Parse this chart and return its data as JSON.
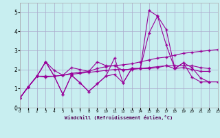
{
  "background_color": "#c8eef0",
  "grid_color": "#aaaacc",
  "line_color": "#990099",
  "xlabel": "Windchill (Refroidissement éolien,°C)",
  "xlim": [
    0,
    23
  ],
  "ylim": [
    0,
    5.5
  ],
  "yticks": [
    0,
    1,
    2,
    3,
    4,
    5
  ],
  "xticks": [
    0,
    1,
    2,
    3,
    4,
    5,
    6,
    7,
    8,
    9,
    10,
    11,
    12,
    13,
    14,
    15,
    16,
    17,
    18,
    19,
    20,
    21,
    22,
    23
  ],
  "series": [
    {
      "x": [
        0,
        1,
        2,
        3,
        4,
        5,
        6,
        7,
        8,
        9,
        10,
        11,
        12,
        13,
        14,
        15,
        16,
        17,
        18,
        19,
        20,
        21,
        22
      ],
      "y": [
        0.5,
        1.1,
        1.65,
        2.4,
        1.65,
        0.7,
        1.7,
        1.3,
        0.85,
        1.25,
        1.65,
        1.75,
        1.3,
        2.05,
        2.05,
        3.9,
        4.8,
        4.1,
        2.05,
        2.35,
        1.6,
        1.35,
        1.35
      ]
    },
    {
      "x": [
        0,
        1,
        2,
        3,
        4,
        5,
        6,
        7,
        8,
        9,
        10,
        11,
        12,
        13,
        14,
        15,
        16,
        17,
        18,
        19,
        20,
        21,
        22,
        23
      ],
      "y": [
        0.5,
        1.1,
        1.65,
        1.6,
        1.65,
        1.7,
        1.8,
        1.85,
        1.9,
        2.05,
        2.15,
        2.2,
        2.25,
        2.3,
        2.4,
        2.5,
        2.6,
        2.65,
        2.75,
        2.85,
        2.9,
        2.95,
        3.0,
        3.05
      ]
    },
    {
      "x": [
        0,
        1,
        2,
        3,
        4,
        5,
        6,
        7,
        8,
        9,
        10,
        11,
        12,
        13,
        14,
        15,
        16,
        17,
        18,
        19,
        20,
        21,
        22
      ],
      "y": [
        0.5,
        1.1,
        1.65,
        2.4,
        1.95,
        1.7,
        2.1,
        2.0,
        1.9,
        2.4,
        2.2,
        2.2,
        1.95,
        2.05,
        2.05,
        2.05,
        2.1,
        2.2,
        2.05,
        2.1,
        2.0,
        1.9,
        1.9
      ]
    },
    {
      "x": [
        0,
        1,
        2,
        3,
        4,
        5,
        6,
        7,
        8,
        9,
        10,
        11,
        12,
        13,
        14,
        15,
        16,
        17,
        18,
        19,
        20,
        21,
        22
      ],
      "y": [
        0.5,
        1.1,
        1.65,
        1.65,
        1.65,
        1.7,
        1.75,
        1.8,
        1.85,
        1.9,
        1.95,
        2.0,
        2.0,
        2.0,
        2.05,
        2.1,
        2.15,
        2.2,
        2.2,
        2.2,
        2.2,
        2.1,
        2.05
      ]
    },
    {
      "x": [
        0,
        1,
        2,
        3,
        4,
        5,
        6,
        7,
        8,
        9,
        10,
        11,
        12,
        13,
        14,
        15,
        16,
        17,
        18,
        19,
        20,
        21,
        22,
        23
      ],
      "y": [
        0.5,
        1.1,
        1.65,
        2.4,
        1.65,
        0.7,
        1.7,
        1.3,
        0.85,
        1.25,
        1.65,
        2.6,
        1.3,
        2.05,
        2.05,
        5.1,
        4.8,
        3.3,
        2.05,
        2.35,
        2.1,
        1.55,
        1.35,
        1.35
      ]
    }
  ]
}
